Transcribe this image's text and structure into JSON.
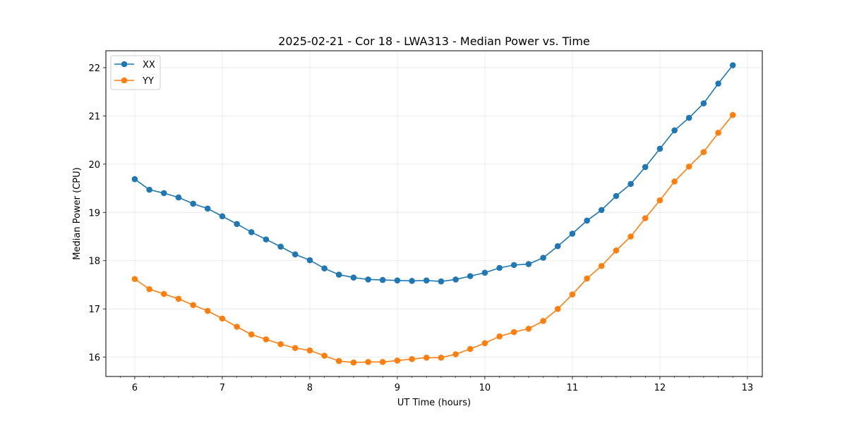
{
  "chart_data": {
    "type": "line",
    "title": "2025-02-21 - Cor 18 - LWA313 - Median Power vs. Time",
    "xlabel": "UT Time (hours)",
    "ylabel": "Median Power (CPU)",
    "xlim": [
      5.67,
      13.17
    ],
    "ylim": [
      15.6,
      22.35
    ],
    "xticks": [
      6,
      7,
      8,
      9,
      10,
      11,
      12,
      13
    ],
    "yticks": [
      16,
      17,
      18,
      19,
      20,
      21,
      22
    ],
    "grid": true,
    "legend_position": "top-left",
    "x": [
      6.0,
      6.167,
      6.333,
      6.5,
      6.667,
      6.833,
      7.0,
      7.167,
      7.333,
      7.5,
      7.667,
      7.833,
      8.0,
      8.167,
      8.333,
      8.5,
      8.667,
      8.833,
      9.0,
      9.167,
      9.333,
      9.5,
      9.667,
      9.833,
      10.0,
      10.167,
      10.333,
      10.5,
      10.667,
      10.833,
      11.0,
      11.167,
      11.333,
      11.5,
      11.667,
      11.833,
      12.0,
      12.167,
      12.333,
      12.5,
      12.667,
      12.833
    ],
    "series": [
      {
        "name": "XX",
        "color": "#1f77b4",
        "values": [
          19.69,
          19.47,
          19.4,
          19.31,
          19.18,
          19.08,
          18.92,
          18.76,
          18.59,
          18.44,
          18.29,
          18.13,
          18.01,
          17.84,
          17.71,
          17.65,
          17.61,
          17.6,
          17.59,
          17.58,
          17.59,
          17.57,
          17.61,
          17.68,
          17.75,
          17.85,
          17.91,
          17.93,
          18.06,
          18.3,
          18.56,
          18.83,
          19.05,
          19.34,
          19.59,
          19.94,
          20.32,
          20.7,
          20.96,
          21.26,
          21.67,
          22.05
        ]
      },
      {
        "name": "YY",
        "color": "#ff7f0e",
        "values": [
          17.62,
          17.41,
          17.31,
          17.21,
          17.08,
          16.96,
          16.8,
          16.63,
          16.47,
          16.37,
          16.27,
          16.19,
          16.14,
          16.03,
          15.92,
          15.89,
          15.9,
          15.9,
          15.93,
          15.96,
          15.99,
          15.99,
          16.06,
          16.17,
          16.29,
          16.43,
          16.52,
          16.59,
          16.75,
          17.0,
          17.3,
          17.63,
          17.89,
          18.21,
          18.5,
          18.88,
          19.25,
          19.64,
          19.95,
          20.25,
          20.65,
          21.02
        ]
      }
    ]
  }
}
